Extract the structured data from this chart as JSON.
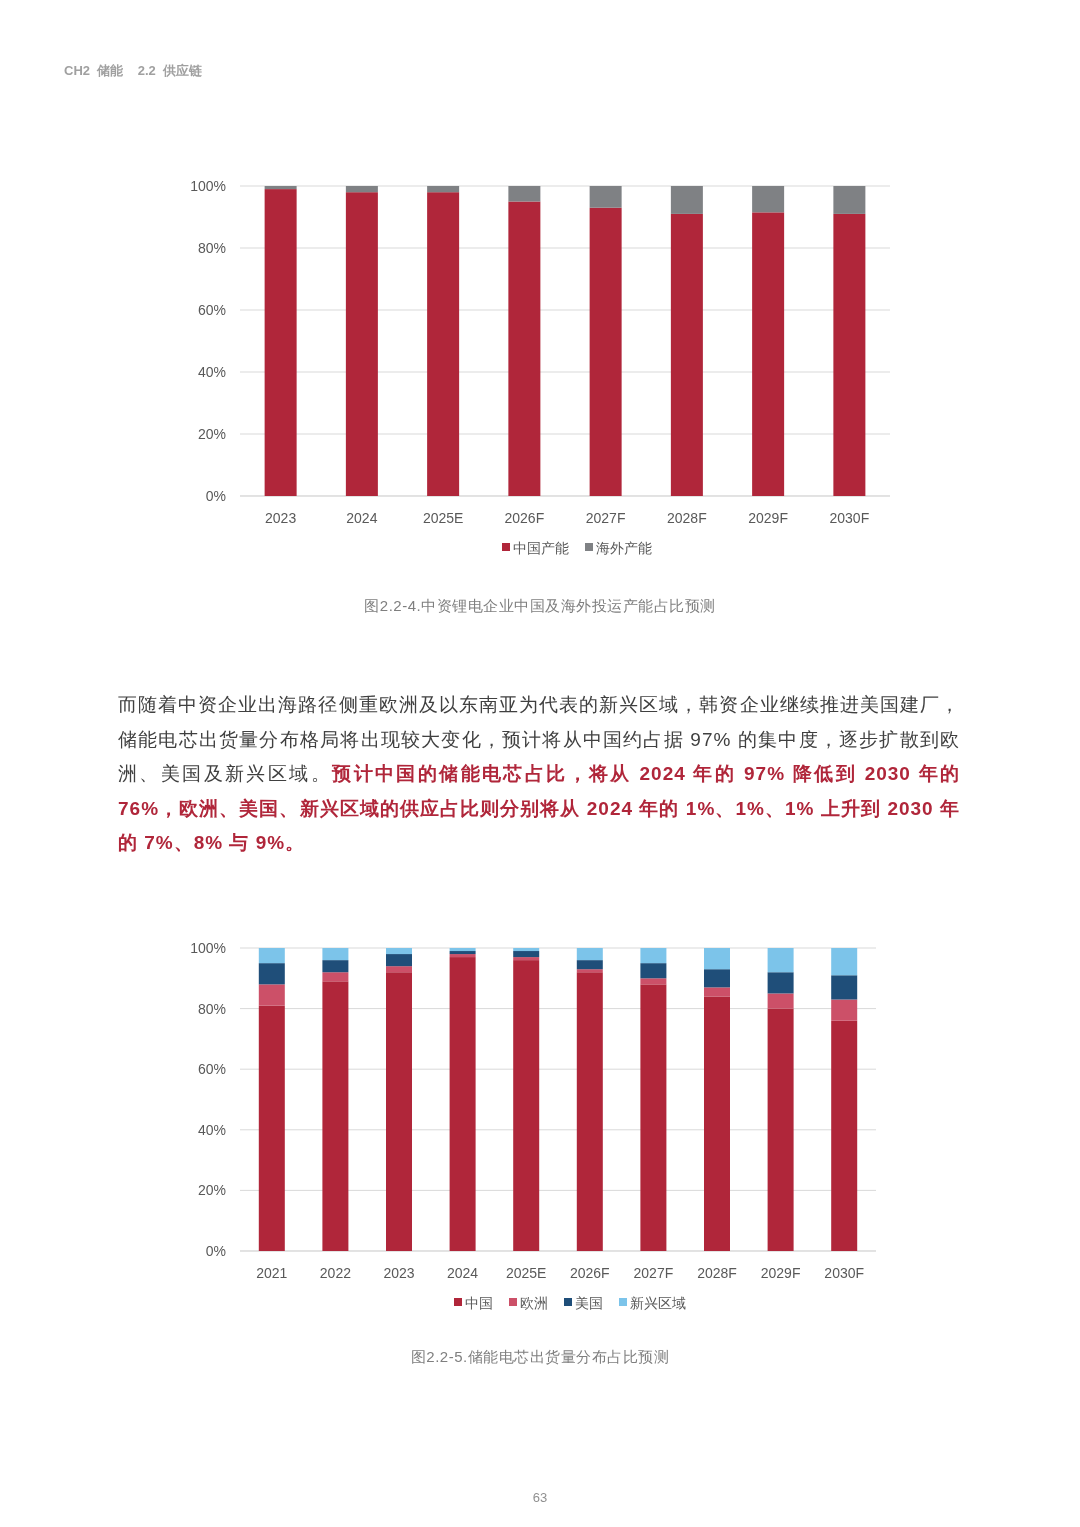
{
  "chart_data": [
    {
      "type": "bar",
      "title": "图2.2-4.中资锂电企业中国及海外投运产能占比预测",
      "stacked": true,
      "grid": "y",
      "legend": "bottom",
      "categories": [
        "2023",
        "2024",
        "2025E",
        "2026F",
        "2027F",
        "2028F",
        "2029F",
        "2030F"
      ],
      "series": [
        {
          "name": "中国产能",
          "color": "#b0263a",
          "values": [
            99,
            98,
            98,
            95,
            93,
            91,
            91.5,
            91
          ]
        },
        {
          "name": "海外产能",
          "color": "#7f8184",
          "values": [
            1,
            2,
            2,
            5,
            7,
            9,
            8.5,
            9
          ]
        }
      ],
      "ylim": [
        0,
        100
      ],
      "yticks": [
        {
          "value": 0,
          "label": "0%"
        },
        {
          "value": 20,
          "label": "20%"
        },
        {
          "value": 40,
          "label": "40%"
        },
        {
          "value": 60,
          "label": "60%"
        },
        {
          "value": 80,
          "label": "80%"
        },
        {
          "value": 100,
          "label": "100%"
        }
      ],
      "annotations": [
        "CH2  储能    2.2  供应链"
      ]
    },
    {
      "type": "bar",
      "title": "图2.2-5.储能电芯出货量分布占比预测",
      "stacked": true,
      "grid": "y",
      "legend": "bottom",
      "categories": [
        "2021",
        "2022",
        "2023",
        "2024",
        "2025E",
        "2026F",
        "2027F",
        "2028F",
        "2029F",
        "2030F"
      ],
      "series": [
        {
          "name": "中国",
          "color": "#b0263a",
          "values": [
            81,
            89,
            92,
            97,
            96,
            92,
            88,
            84,
            80,
            76
          ]
        },
        {
          "name": "欧洲",
          "color": "#cc5068",
          "values": [
            7,
            3,
            2,
            1,
            1,
            1,
            2,
            3,
            5,
            7
          ]
        },
        {
          "name": "美国",
          "color": "#1f4e79",
          "values": [
            7,
            4,
            4,
            1,
            2,
            3,
            5,
            6,
            7,
            8
          ]
        },
        {
          "name": "新兴区域",
          "color": "#7cc4ea",
          "values": [
            5,
            4,
            2,
            1,
            1,
            4,
            5,
            7,
            8,
            9
          ]
        }
      ],
      "ylim": [
        0,
        100
      ],
      "yticks": [
        {
          "value": 0,
          "label": "0%"
        },
        {
          "value": 20,
          "label": "20%"
        },
        {
          "value": 40,
          "label": "40%"
        },
        {
          "value": 60,
          "label": "60%"
        },
        {
          "value": 80,
          "label": "80%"
        },
        {
          "value": 100,
          "label": "100%"
        }
      ],
      "annotations": [
        "而随着中资企业出海路径侧重欧洲及以东南亚为代表的新兴区域，韩资企业继续推进美国建厂，储能电芯出货量分布格局将出现较大变化，预计将从中国约占据 97% 的集中度，逐步扩散到欧洲、美国及新兴区域。",
        "预计中国的储能电芯占比，将从 2024 年的 97% 降低到 2030 年的 76%，欧洲、美国、新兴区域的供应占比则分别将从 2024 年的 1%、1%、1% 上升到 2030 年的 7%、8% 与 9%。",
        "63"
      ]
    }
  ]
}
